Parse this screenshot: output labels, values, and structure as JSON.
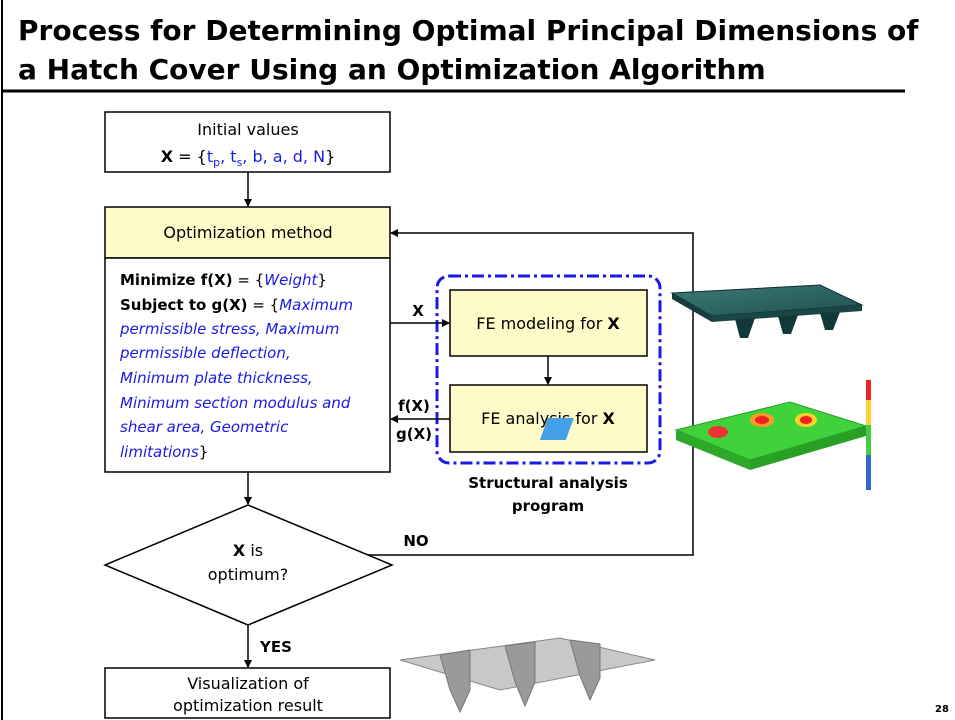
{
  "title_lines": [
    "Process for Determining Optimal Principal Dimensions of",
    "a Hatch Cover Using an Optimization Algorithm"
  ],
  "page_number": "28",
  "initial": {
    "label": "Initial values",
    "lhs": "X",
    "eq": " = {",
    "terms": [
      {
        "text": "t",
        "sub": "p"
      },
      {
        "text": ", t",
        "sub": "s"
      }
    ],
    "rest": ", b, a, d, N",
    "close": "}"
  },
  "optimization": {
    "header": "Optimization method",
    "objective": {
      "lhs": "Minimize f(X)",
      "eq": " = {",
      "value": "Weight",
      "close": "}"
    },
    "constraint": {
      "lhs": "Subject to g(X)",
      "eq": " = {",
      "lines": [
        "Maximum",
        "permissible stress, Maximum",
        "permissible deflection,",
        "Minimum plate thickness,",
        "Minimum section modulus and",
        "shear area, Geometric",
        "limitations"
      ],
      "close": "}"
    }
  },
  "fe_modeling": {
    "text": "FE modeling for ",
    "var": "X"
  },
  "fe_analysis": {
    "text": "FE analysis for ",
    "var": "X"
  },
  "group_label": [
    "Structural analysis",
    "program"
  ],
  "edge_labels": {
    "x": "X",
    "fx": "f(X)",
    "gx": "g(X)",
    "no": "NO",
    "yes": "YES"
  },
  "decision": {
    "var": "X",
    "rest": " is",
    "line2": "optimum?"
  },
  "final": [
    "Visualization of",
    "optimization result"
  ]
}
